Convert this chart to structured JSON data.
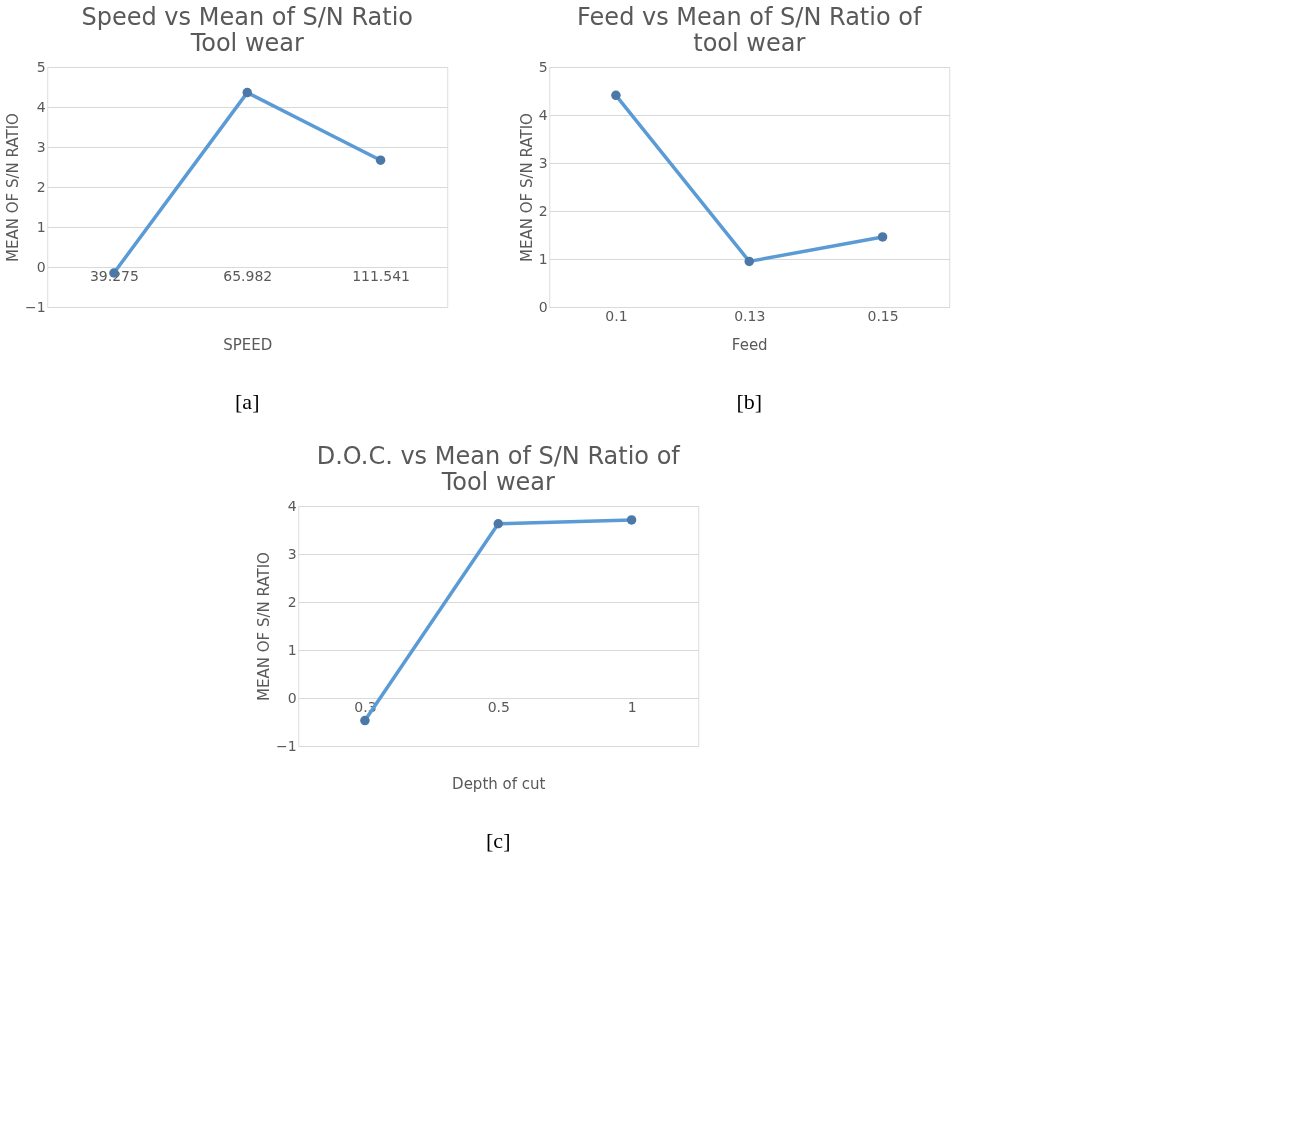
{
  "chart_data": [
    {
      "type": "line",
      "title": "Speed vs Mean of S/N Ratio Tool wear",
      "xlabel": "SPEED",
      "ylabel": "MEAN OF S/N RATIO",
      "categories": [
        "39.275",
        "65.982",
        "111.541"
      ],
      "series": [
        {
          "color": "#5b9bd5",
          "values": [
            -0.15,
            4.36,
            2.67
          ]
        }
      ],
      "ylim": [
        -1,
        5
      ],
      "yticks": [
        -1,
        0,
        1,
        2,
        3,
        4,
        5
      ],
      "grid": "y",
      "marker": "circle",
      "line_style": "solid",
      "annotations": [
        "[a]"
      ]
    },
    {
      "type": "line",
      "title": "Feed vs Mean of S/N Ratio of tool wear",
      "xlabel": "Feed",
      "ylabel": "MEAN OF S/N RATIO",
      "categories": [
        "0.1",
        "0.13",
        "0.15"
      ],
      "series": [
        {
          "color": "#5b9bd5",
          "values": [
            4.41,
            0.95,
            1.46
          ]
        }
      ],
      "ylim": [
        0,
        5
      ],
      "yticks": [
        0,
        1,
        2,
        3,
        4,
        5
      ],
      "grid": "y",
      "marker": "circle",
      "line_style": "solid",
      "annotations": [
        "[b]"
      ]
    },
    {
      "type": "line",
      "title": "D.O.C. vs Mean of S/N Ratio of Tool wear",
      "xlabel": "Depth of cut",
      "ylabel": "MEAN OF S/N RATIO",
      "categories": [
        "0.3",
        "0.5",
        "1"
      ],
      "series": [
        {
          "color": "#5b9bd5",
          "values": [
            -0.47,
            3.63,
            3.71
          ]
        }
      ],
      "ylim": [
        -1,
        4
      ],
      "yticks": [
        -1,
        0,
        1,
        2,
        3,
        4
      ],
      "grid": "y",
      "marker": "circle",
      "line_style": "solid",
      "annotations": [
        "[c]"
      ]
    }
  ]
}
